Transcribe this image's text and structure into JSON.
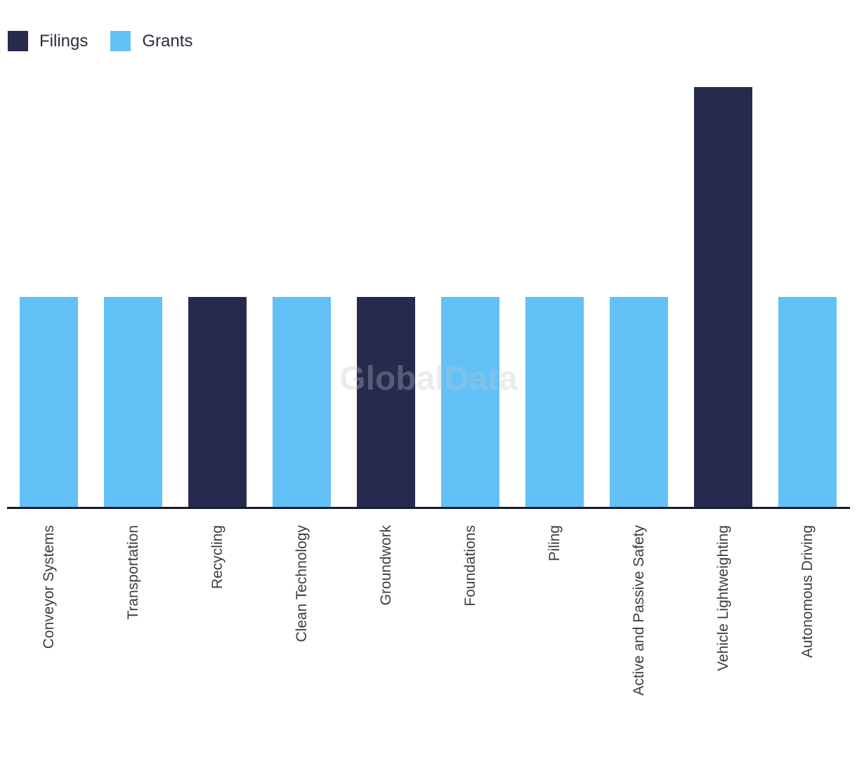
{
  "watermark": "GlobalData",
  "chart_data": {
    "type": "bar",
    "title": "",
    "xlabel": "",
    "ylabel": "",
    "categories": [
      "Conveyor Systems",
      "Transportation",
      "Recycling",
      "Clean Technology",
      "Groundwork",
      "Foundations",
      "Piling",
      "Active and Passive Safety",
      "Vehicle Lightweighting",
      "Autonomous Driving"
    ],
    "series": [
      {
        "name": "Filings",
        "color": "#262b4e",
        "values": [
          0,
          0,
          1,
          0,
          1,
          0,
          0,
          0,
          2,
          0
        ]
      },
      {
        "name": "Grants",
        "color": "#62c1f7",
        "values": [
          1,
          1,
          0,
          1,
          0,
          1,
          1,
          1,
          0,
          1
        ]
      }
    ],
    "ylim": [
      0,
      2
    ],
    "grid": false,
    "y_axis_visible": false,
    "legend_position": "top-left",
    "axis_line_color": "#161b2e",
    "label_color": "#3d3d3d"
  }
}
